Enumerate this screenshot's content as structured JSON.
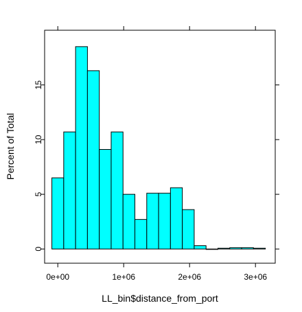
{
  "chart_data": {
    "type": "bar",
    "histogram": true,
    "xlabel": "LL_bin$distance_from_port",
    "ylabel": "Percent of Total",
    "xlim": [
      -200000,
      3300000
    ],
    "ylim": [
      -1.3,
      20.0
    ],
    "x_ticks": [
      0,
      1000000,
      2000000,
      3000000
    ],
    "x_tick_labels": [
      "0e+00",
      "1e+06",
      "2e+06",
      "3e+06"
    ],
    "y_ticks": [
      0,
      5,
      10,
      15
    ],
    "y_tick_labels": [
      "0",
      "5",
      "10",
      "15"
    ],
    "bin_width": 180000,
    "bin_starts": [
      -90000,
      90000,
      270000,
      450000,
      630000,
      810000,
      990000,
      1170000,
      1350000,
      1530000,
      1710000,
      1890000,
      2070000,
      2250000,
      2430000,
      2610000,
      2790000,
      2970000
    ],
    "values": [
      6.5,
      10.7,
      18.5,
      16.3,
      9.1,
      10.7,
      5.0,
      2.7,
      5.1,
      5.1,
      5.6,
      3.6,
      0.3,
      0.0,
      0.07,
      0.12,
      0.12,
      0.07
    ],
    "bar_color": "#00ffff",
    "bar_edge_color": "#000000",
    "grid": false,
    "legend": "none"
  }
}
